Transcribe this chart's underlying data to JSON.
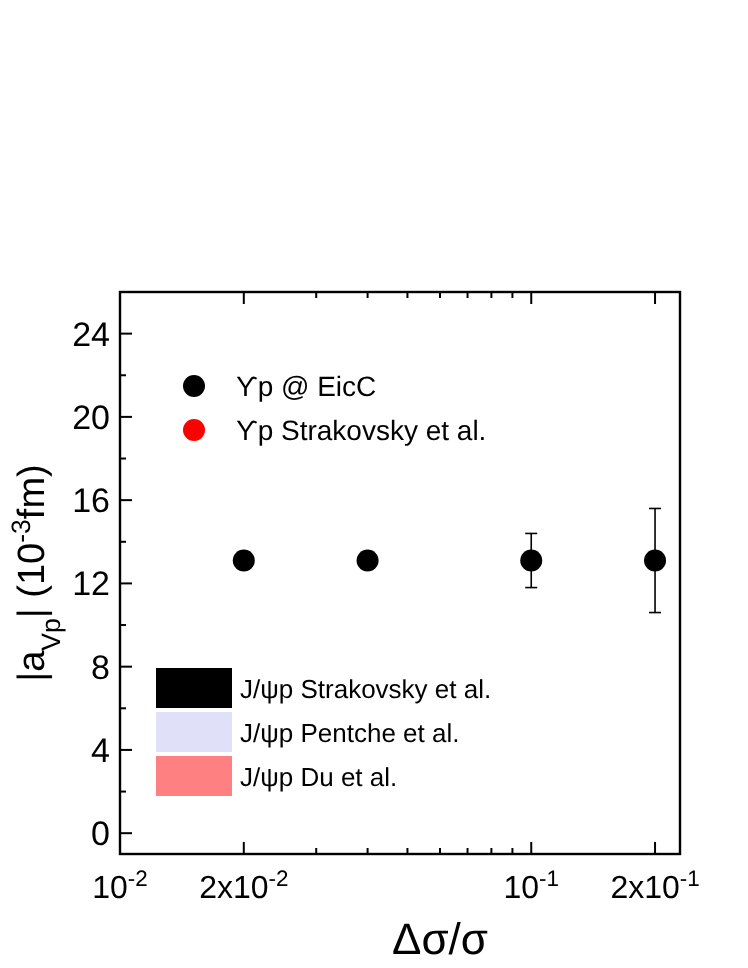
{
  "chart_data": {
    "type": "scatter",
    "xlabel": "Δσ/σ",
    "ylabel": "|a$_{Vp}$| (10$^{-3}$fm)",
    "log": "x",
    "x": [
      0.02,
      0.04,
      0.1,
      0.2
    ],
    "xlim": [
      0.01,
      0.23
    ],
    "xticks": [
      {
        "value": 0.01,
        "label": "10$^{-2}$"
      },
      {
        "value": 0.02,
        "label": "2x10$^{-2}$"
      },
      {
        "value": 0.03,
        "label": null
      },
      {
        "value": 0.04,
        "label": null
      },
      {
        "value": 0.05,
        "label": null
      },
      {
        "value": 0.06,
        "label": null
      },
      {
        "value": 0.07,
        "label": null
      },
      {
        "value": 0.08,
        "label": null
      },
      {
        "value": 0.09,
        "label": null
      },
      {
        "value": 0.1,
        "label": "10$^{-1}$"
      },
      {
        "value": 0.2,
        "label": "2x10$^{-1}$"
      }
    ],
    "ylim": [
      -1,
      26
    ],
    "yticks": [
      0,
      {
        "value": 2,
        "label": null
      },
      4,
      {
        "value": 6,
        "label": null
      },
      8,
      {
        "value": 10,
        "label": null
      },
      12,
      {
        "value": 14,
        "label": null
      },
      16,
      {
        "value": 18,
        "label": null
      },
      20,
      {
        "value": 22,
        "label": null
      },
      24
    ],
    "marker": "circle",
    "legend": "left",
    "grid": false,
    "series": [
      {
        "name": "ϒp @ EicC",
        "color": "#000000",
        "values": [
          13.1,
          13.1,
          13.1,
          13.1
        ],
        "errors": [
          null,
          null,
          1.3,
          [
            10.6,
            15.6
          ]
        ]
      },
      {
        "name": "ϒp Strakovsky et al.",
        "color": "#ff0000",
        "values": [
          null,
          null,
          null,
          null
        ]
      },
      {
        "name": "J/ψp Strakovsky et al.",
        "type": "area",
        "color": "#000000",
        "values": [
          null,
          null,
          null,
          null
        ]
      },
      {
        "name": "J/ψp Pentche et al.",
        "type": "area",
        "color": "#e0e0f8",
        "values": [
          null,
          null,
          null,
          null
        ]
      },
      {
        "name": "J/ψp Du et al.",
        "type": "area",
        "color": "#ff8080",
        "values": [
          null,
          null,
          null,
          null
        ]
      }
    ]
  }
}
